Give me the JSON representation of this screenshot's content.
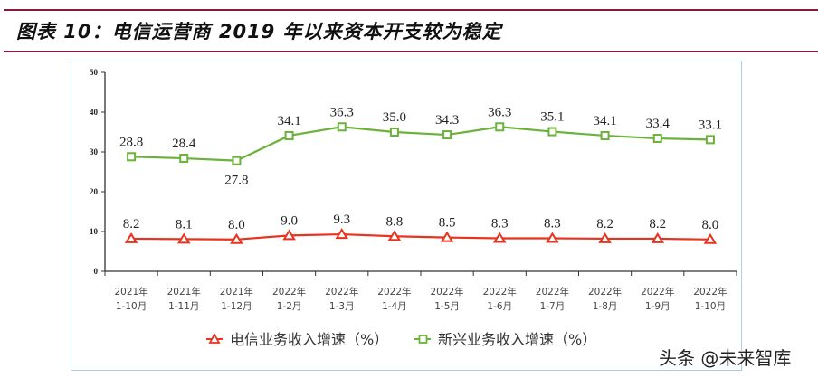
{
  "header": {
    "title": "图表 10：电信运营商 2019 年以来资本开支较为稳定"
  },
  "colors": {
    "rule": "#8b1a3a",
    "frame": "#a9cfe6",
    "telecom_series": "#e8331f",
    "emerging_series": "#6ab23a",
    "axis": "#333333"
  },
  "chart_data": {
    "type": "line",
    "title": "",
    "xlabel": "",
    "ylabel": "",
    "ylim": [
      0,
      50
    ],
    "yticks": [
      0,
      10,
      20,
      30,
      40,
      50
    ],
    "grid": false,
    "legend_position": "bottom",
    "categories": [
      [
        "2021年",
        "1-10月"
      ],
      [
        "2021年",
        "1-11月"
      ],
      [
        "2021年",
        "1-12月"
      ],
      [
        "2022年",
        "1-2月"
      ],
      [
        "2022年",
        "1-3月"
      ],
      [
        "2022年",
        "1-4月"
      ],
      [
        "2022年",
        "1-5月"
      ],
      [
        "2022年",
        "1-6月"
      ],
      [
        "2022年",
        "1-7月"
      ],
      [
        "2022年",
        "1-8月"
      ],
      [
        "2022年",
        "1-9月"
      ],
      [
        "2022年",
        "1-10月"
      ]
    ],
    "series": [
      {
        "name": "电信业务收入增速（%）",
        "marker": "triangle",
        "color": "#e8331f",
        "values": [
          8.2,
          8.1,
          8.0,
          9.0,
          9.3,
          8.8,
          8.5,
          8.3,
          8.3,
          8.2,
          8.2,
          8.0
        ],
        "labels": [
          "8.2",
          "8.1",
          "8.0",
          "9.0",
          "9.3",
          "8.8",
          "8.5",
          "8.3",
          "8.3",
          "8.2",
          "8.2",
          "8.0"
        ]
      },
      {
        "name": "新兴业务收入增速（%）",
        "marker": "square",
        "color": "#6ab23a",
        "values": [
          28.8,
          28.4,
          27.8,
          34.1,
          36.3,
          35.0,
          34.3,
          36.3,
          35.1,
          34.1,
          33.4,
          33.1
        ],
        "labels": [
          "28.8",
          "28.4",
          "27.8",
          "34.1",
          "36.3",
          "35.0",
          "34.3",
          "36.3",
          "35.1",
          "34.1",
          "33.4",
          "33.1"
        ]
      }
    ]
  },
  "legend": {
    "items": [
      {
        "label": "电信业务收入增速（%）"
      },
      {
        "label": "新兴业务收入增速（%）"
      }
    ]
  },
  "watermark": {
    "text": "头条 @未来智库"
  }
}
